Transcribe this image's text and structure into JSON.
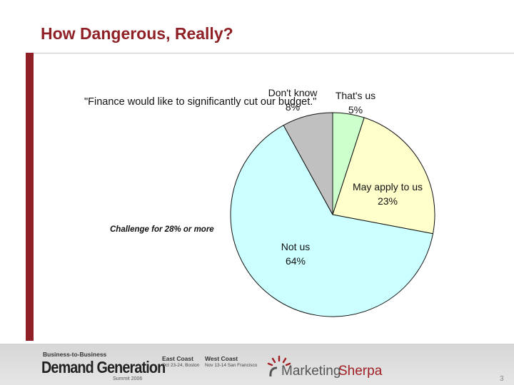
{
  "slide": {
    "title": "How Dangerous, Really?",
    "quote": "\"Finance would like to significantly cut our budget.\"",
    "callout": "Challenge for 28% or more",
    "page_number": "3"
  },
  "chart_data": {
    "type": "pie",
    "title": "",
    "slices": [
      {
        "label": "That's us",
        "value": 5,
        "value_label": "5%",
        "color": "#ccffcc"
      },
      {
        "label": "May apply to us",
        "value": 23,
        "value_label": "23%",
        "color": "#ffffcc"
      },
      {
        "label": "Not us",
        "value": 64,
        "value_label": "64%",
        "color": "#ccffff"
      },
      {
        "label": "Don't know",
        "value": 8,
        "value_label": "8%",
        "color": "#c0c0c0"
      }
    ]
  },
  "footer": {
    "brand_small": "Business-to-Business",
    "brand_big": "Demand Generation",
    "brand_summit": "Summit 2006",
    "east_head": "East Coast",
    "east_sub": "Oct 23-24, Boston",
    "west_head": "West Coast",
    "west_sub": "Nov 13-14 San Francisco",
    "sherpa_a": "Marketing",
    "sherpa_b": "Sherpa"
  }
}
